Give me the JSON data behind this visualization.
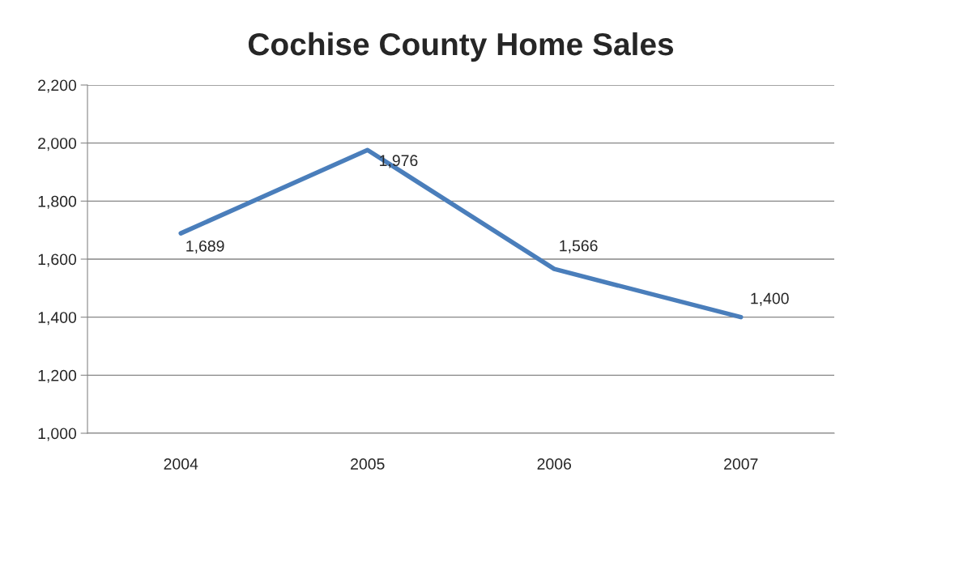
{
  "chart_data": {
    "type": "line",
    "title": "Cochise County Home Sales",
    "categories": [
      "2004",
      "2005",
      "2006",
      "2007"
    ],
    "series": [
      {
        "color": "#4a7ebb",
        "values": [
          1689,
          1976,
          1566,
          1400
        ],
        "value_labels": [
          "1,689",
          "1,976",
          "1,566",
          "1,400"
        ]
      }
    ],
    "ylim": [
      1000,
      2200
    ],
    "yticks": [
      {
        "value": 1000,
        "label": "1,000"
      },
      {
        "value": 1200,
        "label": "1,200"
      },
      {
        "value": 1400,
        "label": "1,400"
      },
      {
        "value": 1600,
        "label": "1,600"
      },
      {
        "value": 1800,
        "label": "1,800"
      },
      {
        "value": 2000,
        "label": "2,000"
      },
      {
        "value": 2200,
        "label": "2,200"
      }
    ],
    "grid": "y",
    "marker": "none",
    "line_style": "solid"
  }
}
